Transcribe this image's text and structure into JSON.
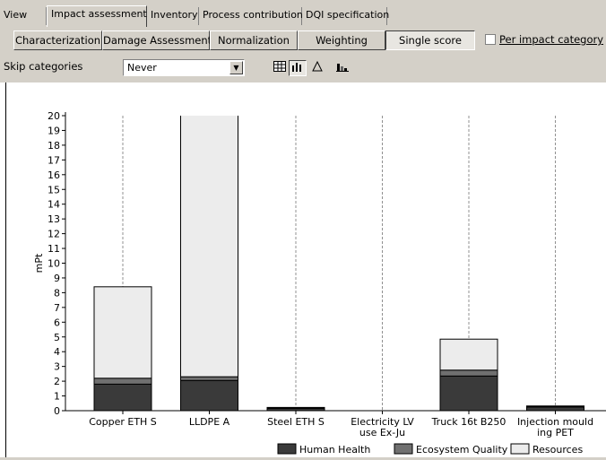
{
  "tabs": [
    "View",
    "Impact assessment",
    "Inventory",
    "Process contribution",
    "DQI specification"
  ],
  "active_tab": "Impact assessment",
  "analysis_buttons": [
    "Characterization",
    "Damage Assessment",
    "Normalization",
    "Weighting",
    "Single score"
  ],
  "active_analysis": "Single score",
  "per_impact_category": {
    "label": "Per impact category",
    "checked": false
  },
  "skip_categories": {
    "label": "Skip categories",
    "value": "Never"
  },
  "view_icons": [
    "table-icon",
    "bar-chart-icon",
    "pie-chart-icon",
    "stacked-chart-icon"
  ],
  "chart_data": {
    "type": "bar",
    "stacked": true,
    "ylabel": "mPt",
    "ylim": [
      0,
      20
    ],
    "yticks": [
      0,
      1,
      2,
      3,
      4,
      5,
      6,
      7,
      8,
      9,
      10,
      11,
      12,
      13,
      14,
      15,
      16,
      17,
      18,
      19,
      20
    ],
    "categories": [
      [
        "Copper ETH S"
      ],
      [
        "LLDPE A"
      ],
      [
        "Steel ETH S"
      ],
      [
        "Electricity LV",
        "use Ex-Ju"
      ],
      [
        "Truck 16t B250"
      ],
      [
        "Injection mould",
        "ing PET"
      ]
    ],
    "series": [
      {
        "name": "Human Health",
        "color": "#3a3a3a",
        "values": [
          1.8,
          2.05,
          0.15,
          0.0,
          2.35,
          0.25
        ]
      },
      {
        "name": "Ecosystem Quality",
        "color": "#707070",
        "values": [
          0.4,
          0.25,
          0.05,
          0.0,
          0.4,
          0.05
        ]
      },
      {
        "name": "Resources",
        "color": "#ececec",
        "values": [
          6.2,
          18.3,
          0.02,
          0.0,
          2.1,
          0.02
        ]
      }
    ],
    "grid": "vertical-dashed",
    "legend": "bottom"
  }
}
